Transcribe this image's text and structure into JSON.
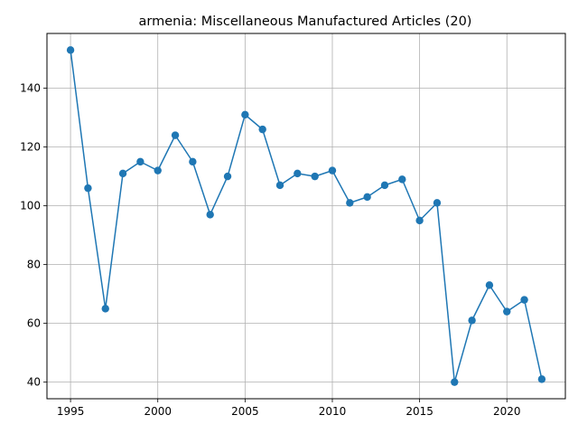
{
  "chart_data": {
    "type": "line",
    "title": "armenia: Miscellaneous Manufactured Articles (20)",
    "xlabel": "",
    "ylabel": "",
    "x": [
      1995,
      1996,
      1997,
      1998,
      1999,
      2000,
      2001,
      2002,
      2003,
      2004,
      2005,
      2006,
      2007,
      2008,
      2009,
      2010,
      2011,
      2012,
      2013,
      2014,
      2015,
      2016,
      2017,
      2018,
      2019,
      2020,
      2021,
      2022
    ],
    "series": [
      {
        "values": [
          153,
          106,
          65,
          111,
          115,
          112,
          124,
          115,
          97,
          110,
          131,
          126,
          107,
          111,
          110,
          112,
          101,
          103,
          107,
          109,
          95,
          101,
          40,
          61,
          73,
          64,
          68,
          41
        ],
        "color": "#1f77b4"
      }
    ],
    "xlim": [
      1993.65,
      2023.35
    ],
    "ylim": [
      34.35,
      158.65
    ],
    "xticks": [
      1995,
      2000,
      2005,
      2010,
      2015,
      2020
    ],
    "yticks": [
      40,
      60,
      80,
      100,
      120,
      140
    ],
    "grid": true,
    "legend": "none"
  }
}
